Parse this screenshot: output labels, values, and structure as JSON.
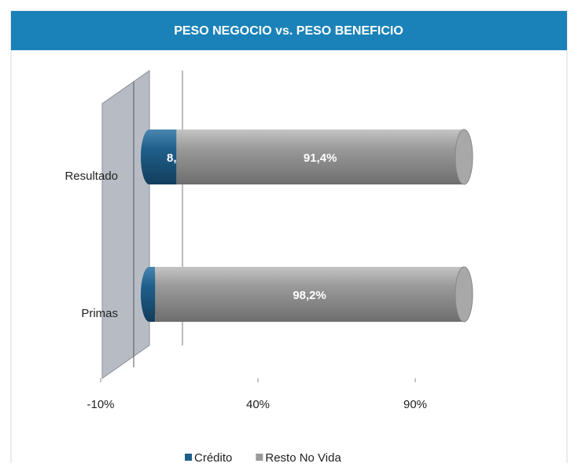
{
  "chart_data": {
    "type": "bar",
    "orientation": "horizontal",
    "stacked": true,
    "title": "PESO NEGOCIO vs. PESO BENEFICIO",
    "categories": [
      "Resultado",
      "Primas"
    ],
    "series": [
      {
        "name": "Crédito",
        "color": "#1f5f8b",
        "values": [
          8.6,
          1.8
        ],
        "value_labels": [
          "8,6%",
          "1,8%"
        ]
      },
      {
        "name": "Resto No Vida",
        "color": "#9a9a9a",
        "values": [
          91.4,
          98.2
        ],
        "value_labels": [
          "91,4%",
          "98,2%"
        ]
      }
    ],
    "xlim": [
      -10,
      110
    ],
    "xticks": [
      {
        "value": -10,
        "label": "-10%"
      },
      {
        "value": 40,
        "label": "40%"
      },
      {
        "value": 90,
        "label": "90%"
      }
    ],
    "grid": false,
    "legend": "bottom"
  }
}
